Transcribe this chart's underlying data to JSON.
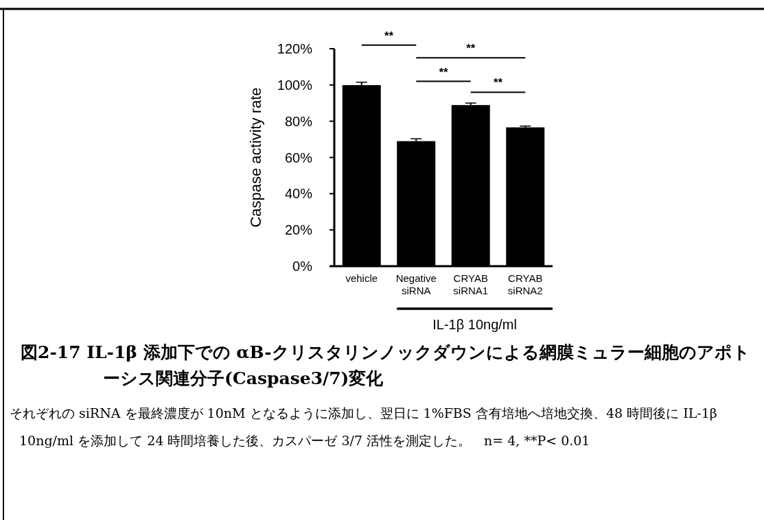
{
  "chart_data": {
    "type": "bar",
    "title": "図2-17 IL-1β 添加下での αB-クリスタリンノックダウンによる網膜ミュラー細胞のアポトーシス関連分子(Caspase3/7)変化",
    "ylabel": "Caspase activity rate",
    "categories": [
      "vehicle",
      "Negative siRNA",
      "CRYAB siRNA1",
      "CRYAB siRNA2"
    ],
    "values": [
      99.9,
      69.0,
      88.9,
      76.6
    ],
    "errors": [
      1.6,
      1.3,
      1.1,
      0.7
    ],
    "color": "#000000",
    "ylim": [
      0,
      120
    ],
    "yticks": [
      {
        "value": 0,
        "label": "0%"
      },
      {
        "value": 20,
        "label": "20%"
      },
      {
        "value": 40,
        "label": "40%"
      },
      {
        "value": 60,
        "label": "60%"
      },
      {
        "value": 80,
        "label": "80%"
      },
      {
        "value": 100,
        "label": "100%"
      },
      {
        "value": 120,
        "label": "120%"
      }
    ],
    "annotations": [
      "**",
      "**",
      "**",
      "**",
      "IL-1β 10ng/ml",
      "それぞれの siRNA を最終濃度が 10nM となるように添加し、翌日に 1%FBS 含有培地へ培地交換、48 時間後に IL-1β 10ng/ml を添加して 24 時間培養した後、カスパーゼ 3/7 活性を測定した。　n= 4, **P< 0.01"
    ]
  }
}
